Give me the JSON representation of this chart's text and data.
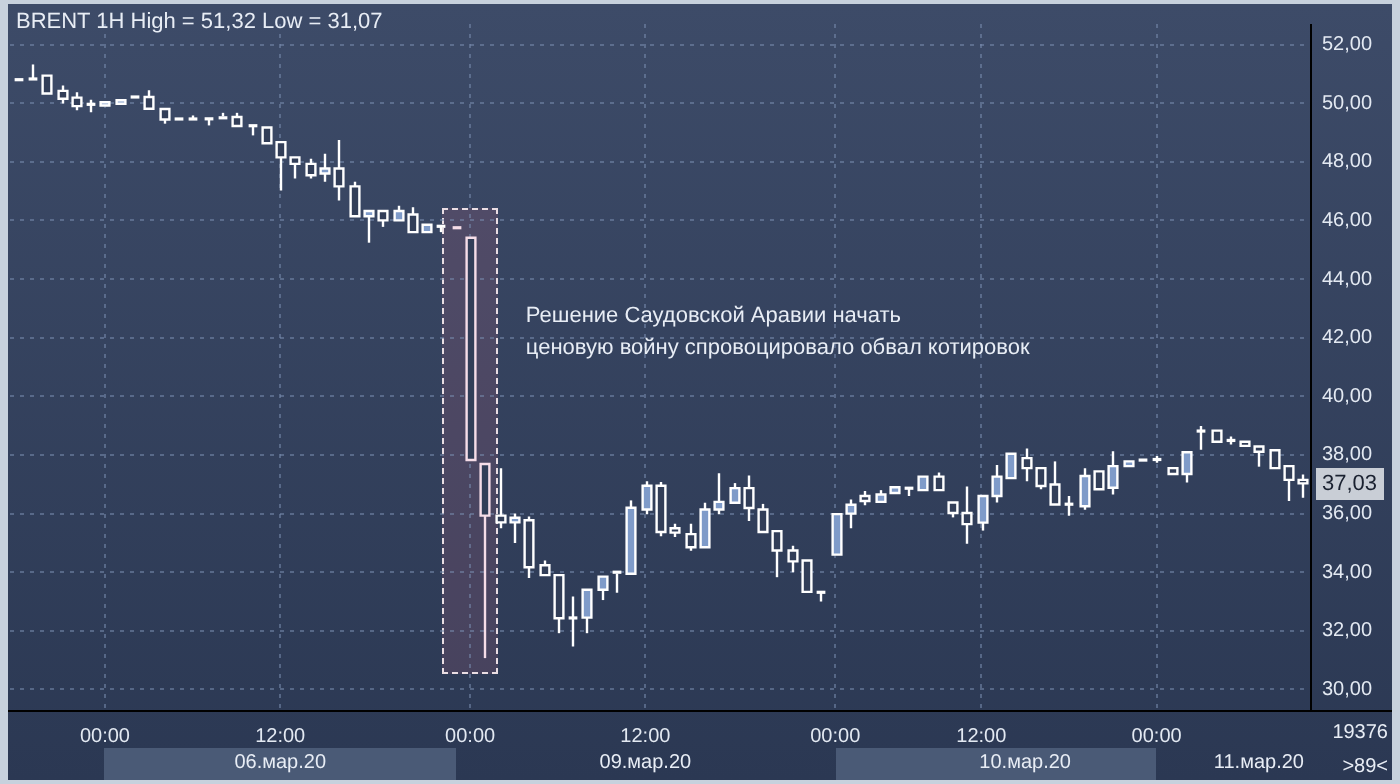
{
  "chart_data": {
    "type": "candlestick",
    "title": "BRENT 1H High = 51,32 Low = 31,07",
    "categories": [
      null,
      null,
      null,
      null,
      null,
      null,
      "00:00",
      null,
      null,
      null,
      null,
      null,
      null,
      null,
      null,
      null,
      null,
      null,
      "12:00",
      null,
      null,
      null,
      null,
      null,
      null,
      null,
      null,
      null,
      null,
      null,
      null,
      "00:00",
      null,
      null,
      null,
      null,
      null,
      null,
      null,
      null,
      null,
      null,
      null,
      "12:00",
      null,
      null,
      null,
      null,
      null,
      null,
      null,
      null,
      null,
      null,
      null,
      null,
      "00:00",
      null,
      null,
      null,
      null,
      null,
      null,
      null,
      null,
      null,
      "12:00",
      null,
      null,
      null,
      null,
      null,
      null,
      null,
      null,
      null,
      null,
      null,
      "00:00",
      null,
      null,
      null,
      null,
      null,
      null,
      null,
      null,
      null,
      null
    ],
    "ohlc": [
      [
        50.8,
        50.82,
        50.78,
        50.8
      ],
      [
        50.85,
        51.32,
        50.7,
        50.8
      ],
      [
        50.94,
        51.0,
        50.3,
        50.33
      ],
      [
        50.42,
        50.6,
        49.99,
        50.15
      ],
      [
        50.19,
        50.37,
        49.76,
        49.9
      ],
      [
        49.97,
        50.12,
        49.69,
        49.95
      ],
      [
        49.92,
        50.05,
        49.9,
        50.03
      ],
      [
        49.98,
        50.1,
        49.97,
        50.1
      ],
      [
        50.21,
        50.23,
        50.19,
        50.21
      ],
      [
        50.21,
        50.44,
        49.8,
        49.81
      ],
      [
        49.8,
        49.81,
        49.3,
        49.44
      ],
      [
        49.47,
        49.5,
        49.4,
        49.45
      ],
      [
        49.47,
        49.58,
        49.4,
        49.45
      ],
      [
        49.48,
        49.5,
        49.24,
        49.45
      ],
      [
        49.45,
        49.67,
        49.38,
        49.55
      ],
      [
        49.53,
        49.67,
        49.12,
        49.22
      ],
      [
        49.24,
        49.24,
        48.9,
        49.22
      ],
      [
        49.17,
        49.24,
        48.63,
        48.63
      ],
      [
        48.67,
        48.74,
        47.02,
        48.15
      ],
      [
        48.15,
        48.15,
        47.43,
        47.93
      ],
      [
        47.93,
        48.1,
        47.43,
        47.54
      ],
      [
        47.6,
        48.27,
        47.32,
        47.77
      ],
      [
        47.77,
        48.74,
        46.68,
        47.16
      ],
      [
        47.16,
        47.32,
        46.14,
        46.14
      ],
      [
        46.14,
        46.37,
        45.24,
        46.32
      ],
      [
        46.32,
        46.37,
        45.78,
        46.0
      ],
      [
        46.0,
        46.5,
        45.95,
        46.32
      ],
      [
        46.2,
        46.45,
        45.5,
        45.6
      ],
      [
        45.6,
        45.95,
        45.5,
        45.85
      ],
      [
        45.8,
        45.9,
        45.6,
        45.8
      ],
      [
        45.75,
        45.78,
        45.72,
        45.75
      ],
      [
        45.41,
        45.45,
        37.83,
        37.83
      ],
      [
        37.69,
        37.75,
        31.07,
        35.93
      ],
      [
        35.93,
        37.55,
        35.5,
        35.7
      ],
      [
        35.7,
        36.0,
        35.0,
        35.86
      ],
      [
        35.77,
        35.9,
        33.8,
        34.17
      ],
      [
        34.24,
        34.4,
        33.8,
        33.9
      ],
      [
        33.9,
        33.95,
        31.92,
        32.43
      ],
      [
        32.45,
        33.17,
        31.47,
        32.43
      ],
      [
        32.45,
        33.45,
        31.92,
        33.4
      ],
      [
        33.4,
        33.9,
        33.05,
        33.85
      ],
      [
        33.95,
        34.05,
        33.3,
        34.05
      ],
      [
        33.95,
        36.45,
        33.9,
        36.2
      ],
      [
        36.14,
        37.1,
        35.98,
        36.95
      ],
      [
        36.95,
        37.08,
        35.23,
        35.37
      ],
      [
        35.5,
        35.65,
        35.2,
        35.35
      ],
      [
        35.3,
        35.65,
        34.73,
        34.85
      ],
      [
        34.85,
        36.37,
        34.78,
        36.14
      ],
      [
        36.14,
        37.38,
        35.98,
        36.4
      ],
      [
        36.37,
        37.04,
        36.33,
        36.87
      ],
      [
        36.87,
        37.3,
        35.75,
        36.19
      ],
      [
        36.14,
        36.33,
        35.3,
        35.37
      ],
      [
        35.4,
        35.5,
        33.83,
        34.74
      ],
      [
        34.74,
        34.9,
        34.0,
        34.37
      ],
      [
        34.4,
        34.5,
        33.26,
        33.33
      ],
      [
        33.33,
        33.38,
        33.0,
        33.3
      ],
      [
        34.6,
        36.0,
        34.6,
        35.98
      ],
      [
        36.0,
        36.48,
        35.5,
        36.3
      ],
      [
        36.6,
        36.77,
        36.28,
        36.43
      ],
      [
        36.4,
        36.8,
        36.3,
        36.65
      ],
      [
        36.7,
        37.0,
        36.65,
        36.9
      ],
      [
        36.85,
        36.92,
        36.6,
        36.88
      ],
      [
        36.8,
        37.3,
        36.8,
        37.26
      ],
      [
        37.26,
        37.4,
        36.75,
        36.8
      ],
      [
        36.38,
        36.4,
        35.87,
        36.02
      ],
      [
        36.02,
        36.92,
        34.97,
        35.64
      ],
      [
        35.69,
        36.65,
        35.42,
        36.6
      ],
      [
        36.6,
        37.66,
        36.38,
        37.26
      ],
      [
        37.21,
        38.13,
        37.15,
        38.04
      ],
      [
        37.89,
        38.22,
        37.1,
        37.55
      ],
      [
        37.55,
        37.6,
        36.83,
        36.94
      ],
      [
        36.99,
        37.78,
        36.27,
        36.31
      ],
      [
        36.33,
        36.6,
        35.93,
        36.31
      ],
      [
        36.25,
        37.55,
        36.13,
        37.28
      ],
      [
        37.44,
        37.44,
        36.8,
        36.83
      ],
      [
        36.88,
        38.13,
        36.65,
        37.62
      ],
      [
        37.62,
        37.87,
        37.55,
        37.78
      ],
      [
        37.78,
        37.96,
        37.73,
        37.87
      ],
      [
        37.84,
        37.96,
        37.73,
        37.85
      ],
      [
        37.55,
        37.55,
        37.35,
        37.35
      ],
      [
        37.35,
        38.1,
        37.06,
        38.09
      ],
      [
        38.8,
        38.99,
        38.18,
        38.83
      ],
      [
        38.83,
        38.83,
        38.4,
        38.45
      ],
      [
        38.5,
        38.63,
        38.36,
        38.49
      ],
      [
        38.45,
        38.54,
        38.3,
        38.31
      ],
      [
        38.29,
        38.31,
        37.6,
        38.11
      ],
      [
        38.16,
        38.2,
        37.5,
        37.55
      ],
      [
        37.62,
        37.62,
        36.43,
        37.15
      ],
      [
        37.15,
        37.33,
        36.54,
        37.03
      ]
    ],
    "color": "#7f9bc9",
    "colors": [
      "#ffffff",
      "#ffffff",
      "#ffffff",
      "#ffffff",
      "#ffffff",
      "#ffffff",
      "#ffffff",
      "#ffffff",
      "#ffffff",
      "#ffffff",
      "#ffffff",
      "#ffffff",
      "#ffffff",
      "#ffffff",
      "#ffffff",
      "#ffffff",
      "#ffffff",
      "#ffffff",
      "#ffffff",
      "#ffffff",
      "#ffffff",
      "#ffffff",
      "#ffffff",
      "#ffffff",
      "#ffffff",
      "#ffffff",
      "#ffffff",
      "#ffffff",
      "#ffffff",
      "#ffffff",
      "#f6dde8",
      "#f6dde8",
      "#f6dde8",
      "#ffffff",
      "#ffffff",
      "#ffffff",
      "#ffffff",
      "#ffffff",
      "#ffffff",
      "#ffffff",
      "#ffffff",
      "#ffffff",
      "#ffffff",
      "#ffffff",
      "#ffffff",
      "#ffffff",
      "#ffffff",
      "#ffffff",
      "#ffffff",
      "#ffffff",
      "#ffffff",
      "#ffffff",
      "#ffffff",
      "#ffffff",
      "#ffffff",
      "#ffffff",
      "#ffffff",
      "#ffffff",
      "#ffffff",
      "#ffffff",
      "#ffffff",
      "#ffffff",
      "#ffffff",
      "#ffffff",
      "#ffffff",
      "#ffffff",
      "#ffffff",
      "#ffffff",
      "#ffffff",
      "#ffffff",
      "#ffffff",
      "#ffffff",
      "#ffffff",
      "#ffffff",
      "#ffffff",
      "#ffffff",
      "#ffffff",
      "#ffffff",
      "#ffffff",
      "#ffffff",
      "#ffffff",
      "#ffffff",
      "#ffffff",
      "#ffffff",
      "#ffffff",
      "#ffffff",
      "#ffffff",
      "#ffffff",
      "#ffffff"
    ],
    "ylim": [
      29.3,
      52.7
    ],
    "yticks": [
      {
        "value": 30,
        "label": "30,00"
      },
      {
        "value": 32,
        "label": "32,00"
      },
      {
        "value": 34,
        "label": "34,00"
      },
      {
        "value": 36,
        "label": "36,00"
      },
      {
        "value": 38,
        "label": "38,00"
      },
      {
        "value": 40,
        "label": "40,00"
      },
      {
        "value": 42,
        "label": "42,00"
      },
      {
        "value": 44,
        "label": "44,00"
      },
      {
        "value": 46,
        "label": "46,00"
      },
      {
        "value": 48,
        "label": "48,00"
      },
      {
        "value": 50,
        "label": "50,00"
      },
      {
        "value": 52,
        "label": "52,00"
      }
    ],
    "grid": true,
    "annotations": [
      "Решение Саудовской Аравии начать\nценовую войну спровоцировало обвал котировок",
      "06.мар.20",
      "09.мар.20",
      "10.мар.20",
      "11.мар.20",
      "19376",
      ">89<",
      {
        "text": "37,03",
        "y": 37.03
      }
    ]
  }
}
